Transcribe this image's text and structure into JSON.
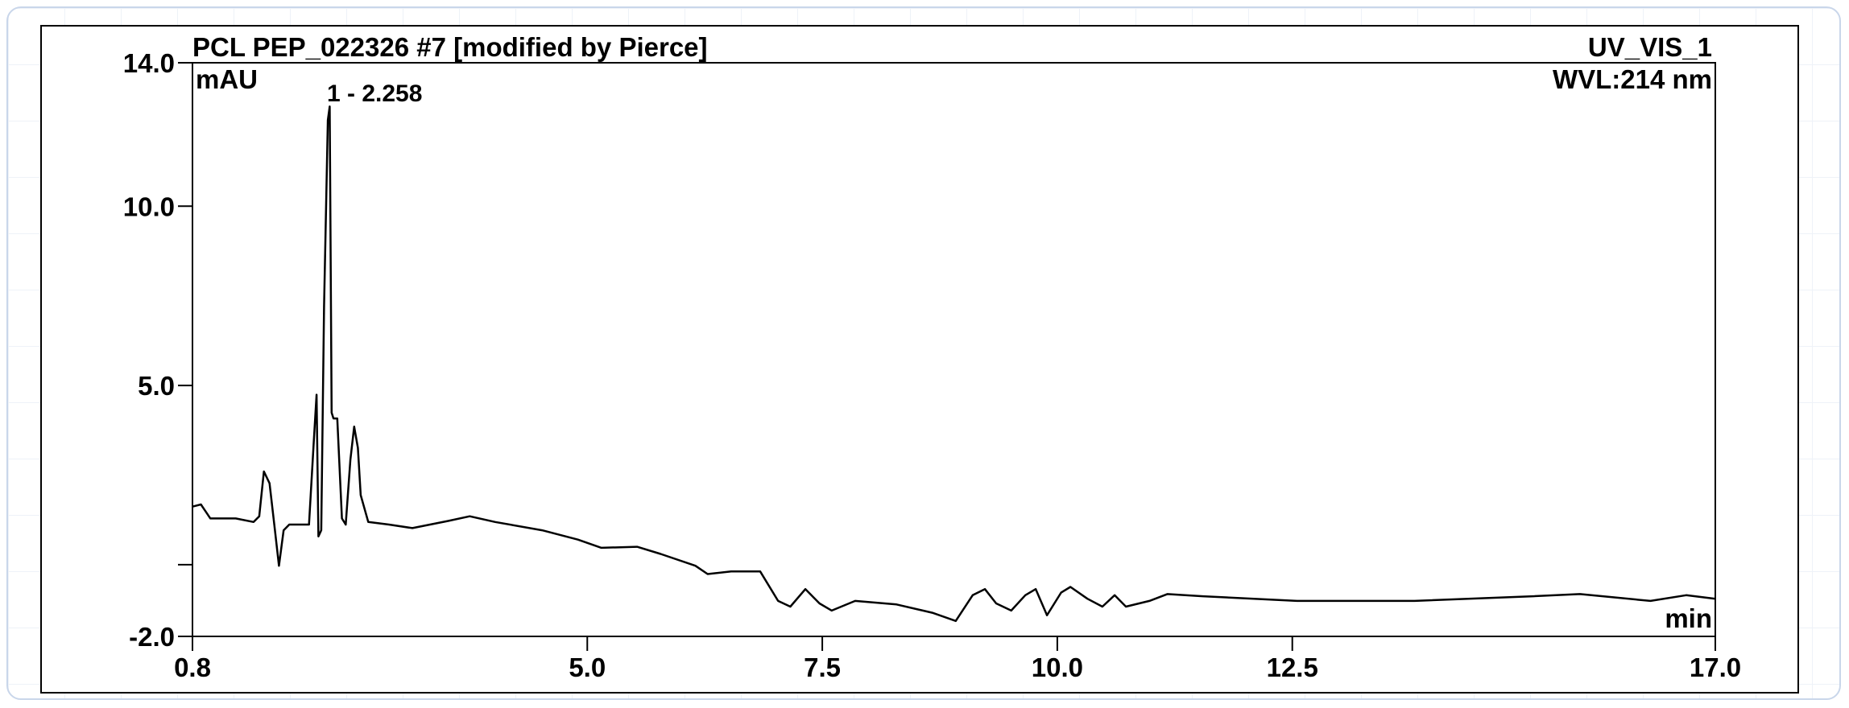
{
  "chart_data": {
    "type": "line",
    "title": "PCL PEP_022326 #7 [modified by Pierce]",
    "channel": "UV_VIS_1",
    "wavelength": "WVL:214 nm",
    "y_label": "mAU",
    "x_label": "min",
    "annotation": "1 - 2.258",
    "xlim": [
      0.8,
      17.0
    ],
    "xticks": [
      0.8,
      {
        "value": 5.0,
        "label": "5.0"
      },
      7.5,
      {
        "value": 10.0,
        "label": "10.0"
      },
      12.5,
      {
        "value": 17.0,
        "label": "17.0"
      }
    ],
    "ylim": [
      -2.0,
      14.0
    ],
    "yticks": [
      {
        "value": -2.0,
        "label": "-2.0"
      },
      {
        "value": 0,
        "label": null
      },
      {
        "value": 5.0,
        "label": "5.0"
      },
      {
        "value": 10.0,
        "label": "10.0"
      },
      {
        "value": 14.0,
        "label": "14.0"
      }
    ],
    "grid": false,
    "series": [
      {
        "name": "UV_VIS_1",
        "color": "#000000",
        "x": [
          0.8,
          0.89,
          0.99,
          1.26,
          1.45,
          1.51,
          1.56,
          1.62,
          1.67,
          1.72,
          1.77,
          1.83,
          2.04,
          2.09,
          2.12,
          2.14,
          2.17,
          2.2,
          2.24,
          2.26,
          2.28,
          2.3,
          2.34,
          2.39,
          2.43,
          2.48,
          2.52,
          2.56,
          2.59,
          2.67,
          2.89,
          3.14,
          3.52,
          3.75,
          4.02,
          4.52,
          4.9,
          5.15,
          5.53,
          5.78,
          6.15,
          6.28,
          6.53,
          6.84,
          7.03,
          7.16,
          7.32,
          7.47,
          7.6,
          7.85,
          8.29,
          8.67,
          8.92,
          9.1,
          9.23,
          9.35,
          9.51,
          9.66,
          9.77,
          9.89,
          10.04,
          10.14,
          10.32,
          10.48,
          10.61,
          10.73,
          10.98,
          11.17,
          11.55,
          12.55,
          13.8,
          15.06,
          15.56,
          16.31,
          16.69,
          17.0
        ],
        "values": [
          1.62,
          1.68,
          1.29,
          1.29,
          1.19,
          1.35,
          2.6,
          2.27,
          1.12,
          -0.03,
          0.96,
          1.12,
          1.12,
          3.42,
          4.74,
          0.79,
          0.96,
          7.2,
          12.4,
          12.78,
          4.24,
          4.08,
          4.08,
          1.29,
          1.12,
          2.93,
          3.85,
          3.26,
          1.94,
          1.19,
          1.12,
          1.02,
          1.22,
          1.35,
          1.19,
          0.96,
          0.7,
          0.47,
          0.5,
          0.3,
          -0.03,
          -0.26,
          -0.19,
          -0.19,
          -1.01,
          -1.17,
          -0.68,
          -1.08,
          -1.28,
          -1.01,
          -1.11,
          -1.34,
          -1.57,
          -0.85,
          -0.68,
          -1.08,
          -1.28,
          -0.85,
          -0.68,
          -1.41,
          -0.78,
          -0.62,
          -0.95,
          -1.17,
          -0.85,
          -1.17,
          -1.01,
          -0.82,
          -0.88,
          -1.01,
          -1.01,
          -0.88,
          -0.82,
          -1.01,
          -0.85,
          -0.95
        ]
      }
    ]
  }
}
